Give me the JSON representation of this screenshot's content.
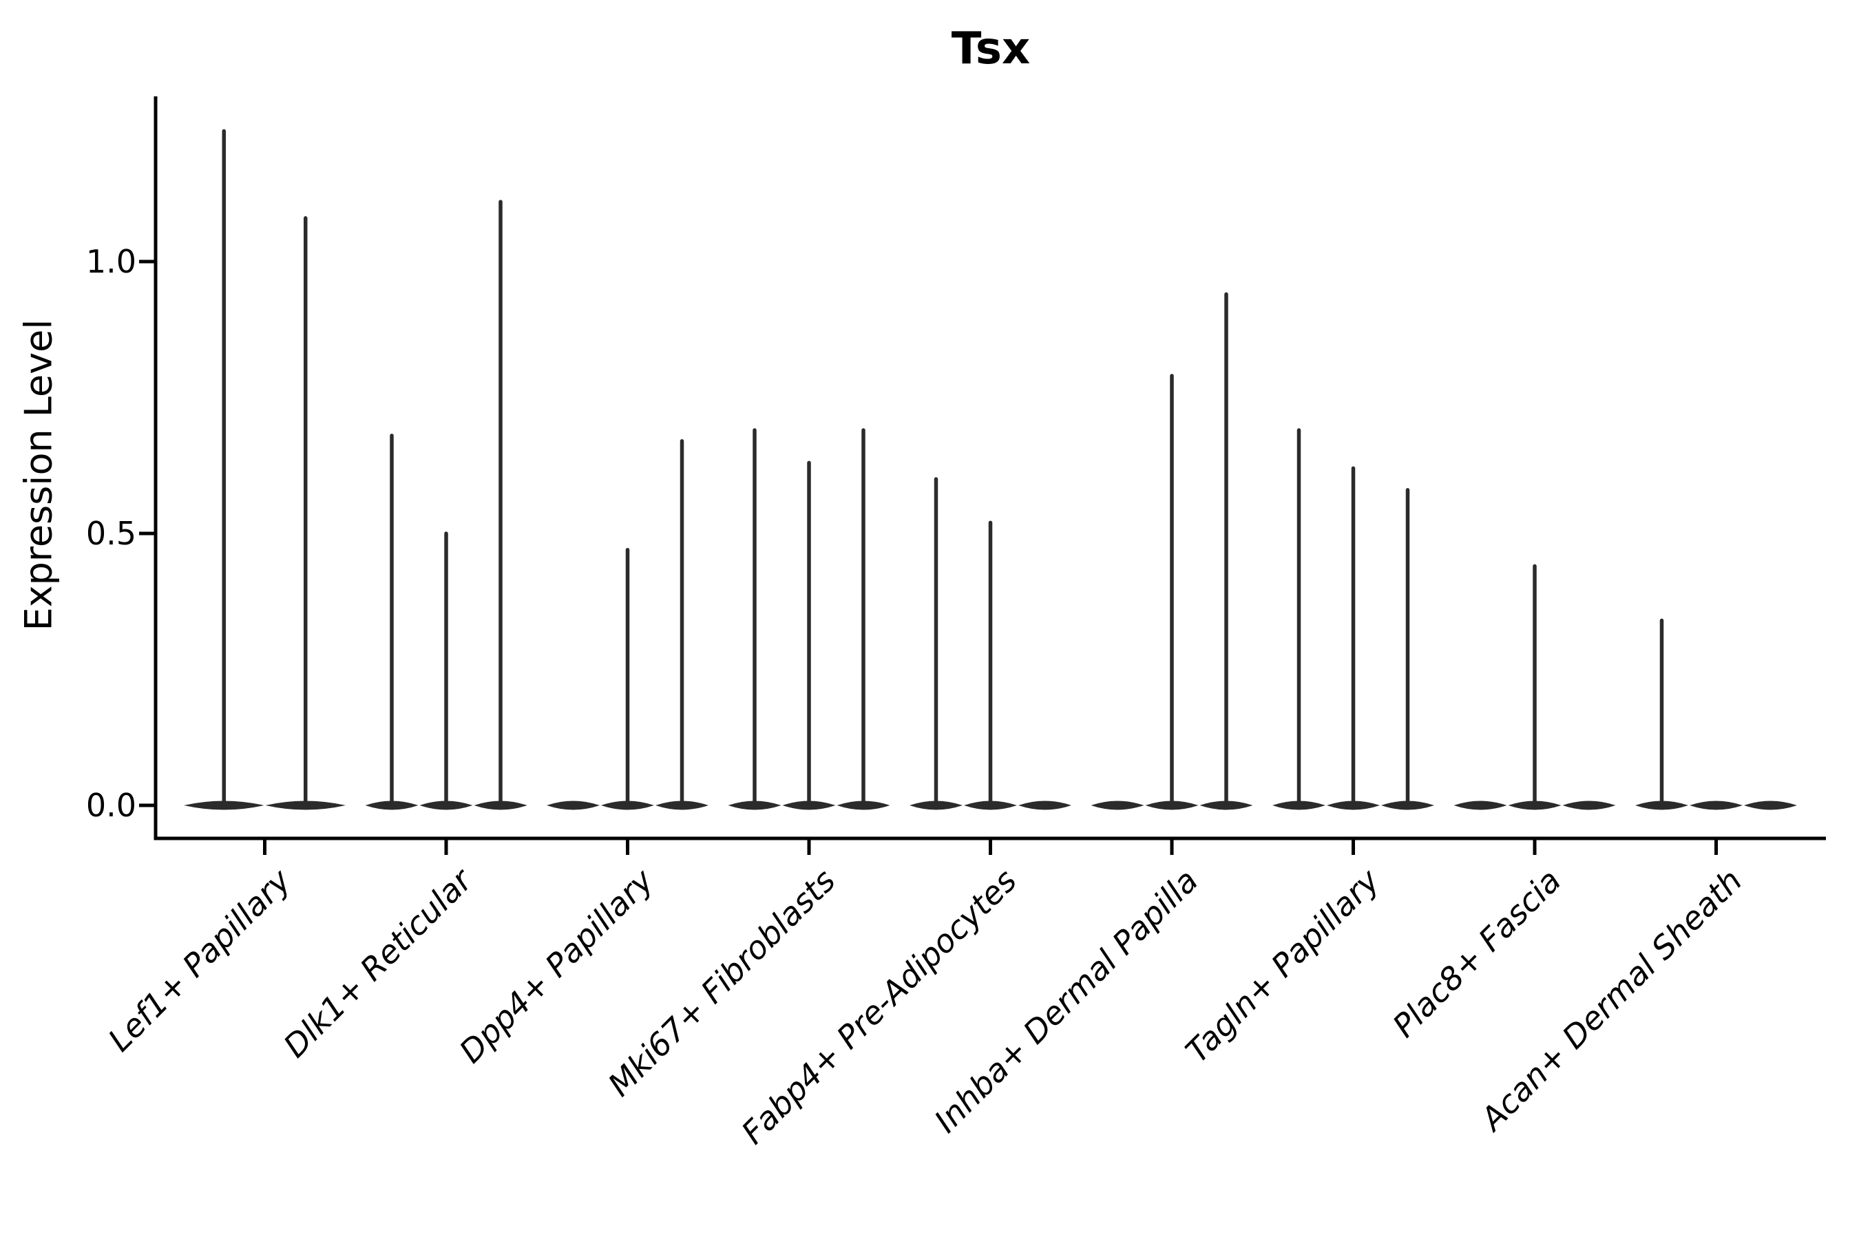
{
  "title": "Tsx",
  "chart_data": {
    "type": "violin",
    "title": "Tsx",
    "xlabel": "",
    "ylabel": "Expression Level",
    "ylim": [
      -0.06,
      1.3
    ],
    "yticks": [
      {
        "label": "0.0",
        "value": 0.0
      },
      {
        "label": "0.5",
        "value": 0.5
      },
      {
        "label": "1.0",
        "value": 1.0
      }
    ],
    "grid": false,
    "legend_position": "none",
    "violin_color": "#2b2b2b",
    "axis_color": "#000000",
    "categories": [
      {
        "label": "Lef1+ Papillary",
        "slots": [
          1.24,
          1.08
        ]
      },
      {
        "label": "Dlk1+ Reticular",
        "slots": [
          0.68,
          0.5,
          1.11
        ]
      },
      {
        "label": "Dpp4+ Papillary",
        "slots": [
          0,
          0.47,
          0.67
        ]
      },
      {
        "label": "Mki67+ Fibroblasts",
        "slots": [
          0.69,
          0.63,
          0.69
        ]
      },
      {
        "label": "Fabp4+ Pre-Adipocytes",
        "slots": [
          0.6,
          0.52,
          0
        ]
      },
      {
        "label": "Inhba+ Dermal Papilla",
        "slots": [
          0,
          0.79,
          0.94
        ]
      },
      {
        "label": "Tagln+ Papillary",
        "slots": [
          0.69,
          0.62,
          0.58
        ]
      },
      {
        "label": "Plac8+ Fascia",
        "slots": [
          0,
          0.44,
          0
        ]
      },
      {
        "label": "Acan+ Dermal Sheath",
        "slots": [
          0.34,
          0,
          0
        ]
      }
    ],
    "slot_value_note": "max expression reached by each sub-violin spike; 0 = flat violin at baseline"
  }
}
